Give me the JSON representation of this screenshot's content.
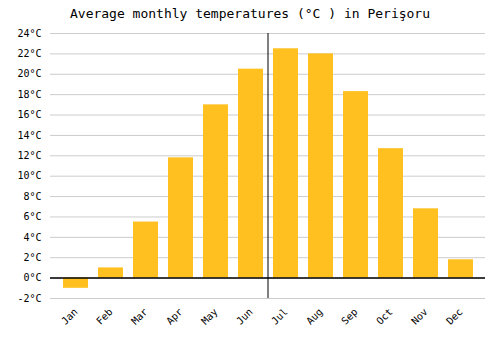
{
  "chart_data": {
    "type": "bar",
    "title": "Average monthly temperatures (°C ) in Perişoru",
    "categories": [
      "Jan",
      "Feb",
      "Mar",
      "Apr",
      "May",
      "Jun",
      "Jul",
      "Aug",
      "Sep",
      "Oct",
      "Nov",
      "Dec"
    ],
    "values": [
      -1.0,
      1.0,
      5.5,
      11.8,
      17.0,
      20.5,
      22.5,
      22.0,
      18.3,
      12.7,
      6.8,
      1.8
    ],
    "color": "#FFC020",
    "ylim": [
      -2,
      24
    ],
    "yticks": [
      {
        "value": -2,
        "label": "-2°C"
      },
      {
        "value": 0,
        "label": "0°C"
      },
      {
        "value": 2,
        "label": "2°C"
      },
      {
        "value": 4,
        "label": "4°C"
      },
      {
        "value": 6,
        "label": "6°C"
      },
      {
        "value": 8,
        "label": "8°C"
      },
      {
        "value": 10,
        "label": "10°C"
      },
      {
        "value": 12,
        "label": "12°C"
      },
      {
        "value": 14,
        "label": "14°C"
      },
      {
        "value": 16,
        "label": "16°C"
      },
      {
        "value": 18,
        "label": "18°C"
      },
      {
        "value": 20,
        "label": "20°C"
      },
      {
        "value": 22,
        "label": "22°C"
      },
      {
        "value": 24,
        "label": "24°C"
      }
    ],
    "grid": true
  }
}
